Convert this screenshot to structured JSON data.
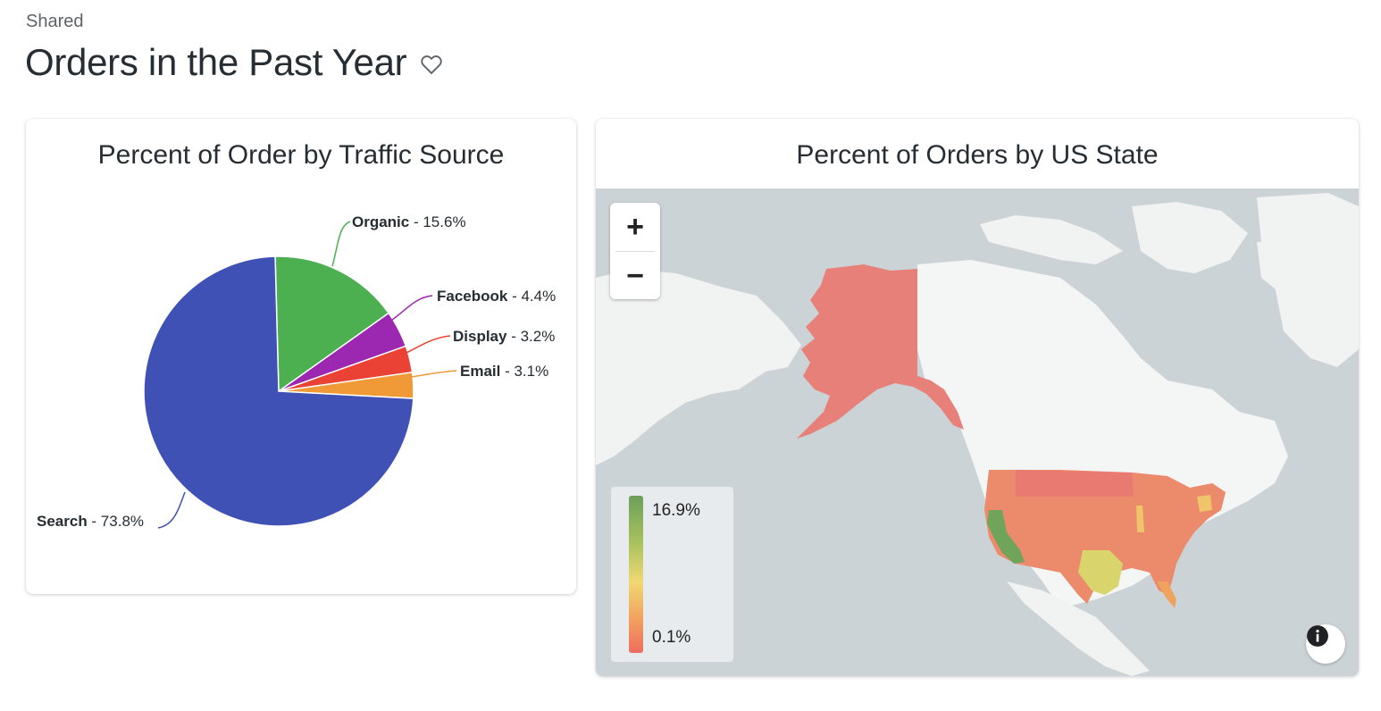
{
  "header": {
    "breadcrumb": "Shared",
    "title": "Orders in the Past Year",
    "favorite_icon": "heart-outline-icon"
  },
  "pie_card": {
    "title": "Percent of Order by Traffic Source"
  },
  "map_card": {
    "title": "Percent of Orders by US State",
    "zoom_in": "+",
    "zoom_out": "−",
    "legend": {
      "max": "16.9%",
      "min": "0.1%"
    },
    "info_icon": "info-icon"
  },
  "chart_data": [
    {
      "type": "pie",
      "title": "Percent of Order by Traffic Source",
      "categories": [
        "Search",
        "Organic",
        "Facebook",
        "Display",
        "Email"
      ],
      "values": [
        73.8,
        15.6,
        4.4,
        3.2,
        3.1
      ],
      "labels": [
        "Search - 73.8%",
        "Organic - 15.6%",
        "Facebook - 4.4%",
        "Display - 3.2%",
        "Email - 3.1%"
      ],
      "colors": [
        "#3f51b5",
        "#4caf50",
        "#9c27b0",
        "#ea4335",
        "#f09a37"
      ]
    }
  ]
}
